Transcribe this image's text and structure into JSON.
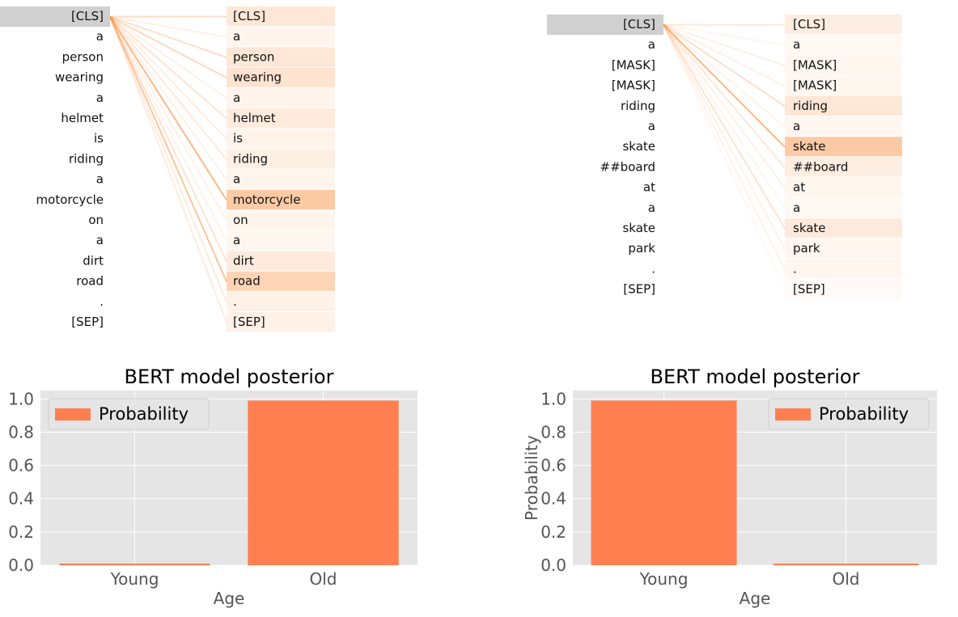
{
  "attention_views": [
    {
      "left_tokens": [
        "[CLS]",
        "a",
        "person",
        "wearing",
        "a",
        "helmet",
        "is",
        "riding",
        "a",
        "motorcycle",
        "on",
        "a",
        "dirt",
        "road",
        ".",
        "[SEP]"
      ],
      "right_tokens": [
        "[CLS]",
        "a",
        "person",
        "wearing",
        "a",
        "helmet",
        "is",
        "riding",
        "a",
        "motorcycle",
        "on",
        "a",
        "dirt",
        "road",
        ".",
        "[SEP]"
      ],
      "selected_index": 0,
      "weights": [
        0.1,
        0.03,
        0.1,
        0.12,
        0.03,
        0.08,
        0.04,
        0.06,
        0.03,
        0.25,
        0.03,
        0.02,
        0.08,
        0.2,
        0.05,
        0.05
      ],
      "colors": {
        "selected": "#d0d0d0",
        "highlight": "#fb8c3c"
      }
    },
    {
      "left_tokens": [
        "[CLS]",
        "a",
        "[MASK]",
        "[MASK]",
        "riding",
        "a",
        "skate",
        "##board",
        "at",
        "a",
        "skate",
        "park",
        ".",
        "[SEP]"
      ],
      "right_tokens": [
        "[CLS]",
        "a",
        "[MASK]",
        "[MASK]",
        "riding",
        "a",
        "skate",
        "##board",
        "at",
        "a",
        "skate",
        "park",
        ".",
        "[SEP]"
      ],
      "selected_index": 0,
      "weights": [
        0.1,
        0.02,
        0.04,
        0.04,
        0.15,
        0.03,
        0.38,
        0.1,
        0.04,
        0.02,
        0.13,
        0.04,
        0.03,
        0.0
      ],
      "colors": {
        "selected": "#d0d0d0",
        "highlight": "#fb8c3c"
      }
    }
  ],
  "chart_data": [
    {
      "type": "bar",
      "title": "BERT model posterior",
      "xlabel": "Age",
      "ylabel": "",
      "categories": [
        "Young",
        "Old"
      ],
      "series": [
        {
          "name": "Probability",
          "values": [
            0.01,
            0.99
          ]
        }
      ],
      "ylim": [
        0,
        1.05
      ],
      "yticks": [
        "0.0",
        "0.2",
        "0.4",
        "0.6",
        "0.8",
        "1.0"
      ],
      "legend_position": "top-left",
      "grid": true,
      "bar_color": "#ff7f50",
      "background_color": "#e5e5e5"
    },
    {
      "type": "bar",
      "title": "BERT model posterior",
      "xlabel": "Age",
      "ylabel": "Probability",
      "categories": [
        "Young",
        "Old"
      ],
      "series": [
        {
          "name": "Probability",
          "values": [
            0.99,
            0.01
          ]
        }
      ],
      "ylim": [
        0,
        1.05
      ],
      "yticks": [
        "0.0",
        "0.2",
        "0.4",
        "0.6",
        "0.8",
        "1.0"
      ],
      "legend_position": "top-right",
      "grid": true,
      "bar_color": "#ff7f50",
      "background_color": "#e5e5e5"
    }
  ]
}
